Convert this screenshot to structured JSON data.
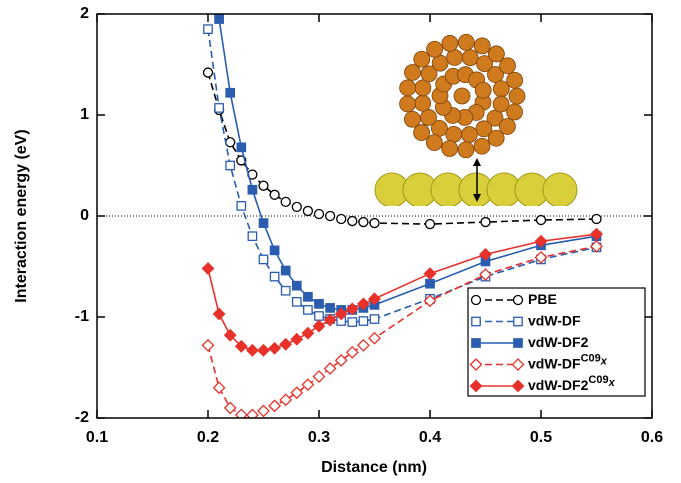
{
  "chart_data": {
    "type": "line",
    "xlabel": "Distance (nm)",
    "ylabel": "Interaction energy (eV)",
    "x": [
      0.2,
      0.21,
      0.22,
      0.23,
      0.24,
      0.25,
      0.26,
      0.27,
      0.28,
      0.29,
      0.3,
      0.31,
      0.32,
      0.33,
      0.34,
      0.35,
      0.4,
      0.45,
      0.5,
      0.55
    ],
    "xlim": [
      0.1,
      0.6
    ],
    "xticks": [
      0.1,
      0.2,
      0.3,
      0.4,
      0.5,
      0.6
    ],
    "ylim": [
      -2,
      2
    ],
    "yticks": [
      -2,
      -1,
      0,
      1,
      2
    ],
    "zero_line": true,
    "legend": "lower right",
    "series": [
      {
        "name": "PBE",
        "color": "#000000",
        "marker": "circle",
        "filled": false,
        "dashed": true,
        "values": [
          1.42,
          1.05,
          0.73,
          0.55,
          0.41,
          0.3,
          0.21,
          0.14,
          0.09,
          0.05,
          0.02,
          0.0,
          -0.03,
          -0.05,
          -0.06,
          -0.07,
          -0.08,
          -0.06,
          -0.04,
          -0.03
        ]
      },
      {
        "name": "vdW-DF",
        "color": "#2a5db0",
        "marker": "square",
        "filled": false,
        "dashed": true,
        "values": [
          1.85,
          1.07,
          0.5,
          0.1,
          -0.2,
          -0.43,
          -0.6,
          -0.74,
          -0.85,
          -0.93,
          -0.99,
          -1.02,
          -1.04,
          -1.05,
          -1.04,
          -1.02,
          -0.82,
          -0.6,
          -0.43,
          -0.31
        ]
      },
      {
        "name": "vdW-DF2",
        "color": "#2a5db0",
        "marker": "square",
        "filled": true,
        "dashed": false,
        "values": [
          null,
          1.95,
          1.22,
          0.68,
          0.26,
          -0.07,
          -0.34,
          -0.54,
          -0.69,
          -0.8,
          -0.87,
          -0.91,
          -0.93,
          -0.93,
          -0.91,
          -0.88,
          -0.67,
          -0.45,
          -0.29,
          -0.2
        ]
      },
      {
        "name": "vdW-DF",
        "name_sup": "C09",
        "name_sub": "x",
        "color": "#e8312a",
        "marker": "diamond",
        "filled": false,
        "dashed": true,
        "values": [
          -1.28,
          -1.7,
          -1.9,
          -1.97,
          -1.97,
          -1.93,
          -1.88,
          -1.82,
          -1.75,
          -1.67,
          -1.59,
          -1.51,
          -1.43,
          -1.35,
          -1.28,
          -1.21,
          -0.84,
          -0.58,
          -0.41,
          -0.3
        ]
      },
      {
        "name": "vdW-DF2",
        "name_sup": "C09",
        "name_sub": "x",
        "color": "#e8312a",
        "marker": "diamond",
        "filled": true,
        "dashed": false,
        "values": [
          -0.52,
          -0.97,
          -1.18,
          -1.29,
          -1.33,
          -1.33,
          -1.31,
          -1.27,
          -1.22,
          -1.16,
          -1.09,
          -1.03,
          -0.97,
          -0.92,
          -0.87,
          -0.82,
          -0.57,
          -0.38,
          -0.25,
          -0.18
        ]
      }
    ]
  }
}
